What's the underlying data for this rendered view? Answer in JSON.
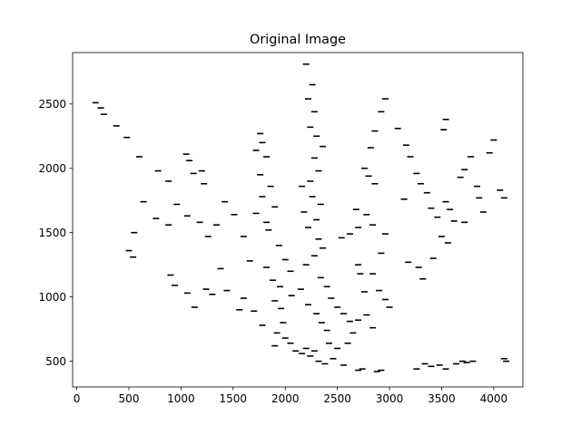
{
  "chart_data": {
    "type": "scatter",
    "title": "Original Image",
    "xlabel": "",
    "ylabel": "",
    "xlim": [
      -40,
      4280
    ],
    "ylim": [
      300,
      2900
    ],
    "x_ticks": [
      0,
      500,
      1000,
      1500,
      2000,
      2500,
      3000,
      3500,
      4000
    ],
    "y_ticks": [
      500,
      1000,
      1500,
      2000,
      2500
    ],
    "x_tick_labels": [
      "0",
      "500",
      "1000",
      "1500",
      "2000",
      "2500",
      "3000",
      "3500",
      "4000"
    ],
    "y_tick_labels": [
      "500",
      "1000",
      "1500",
      "2000",
      "2500"
    ],
    "grid": false,
    "marker": "short horizontal dash",
    "color": "#000000",
    "points": [
      [
        180,
        2510
      ],
      [
        230,
        2470
      ],
      [
        260,
        2420
      ],
      [
        380,
        2330
      ],
      [
        480,
        2240
      ],
      [
        600,
        2090
      ],
      [
        780,
        1980
      ],
      [
        880,
        1900
      ],
      [
        1050,
        2110
      ],
      [
        1080,
        2060
      ],
      [
        1120,
        1960
      ],
      [
        1220,
        1880
      ],
      [
        1200,
        1980
      ],
      [
        550,
        1500
      ],
      [
        640,
        1740
      ],
      [
        760,
        1610
      ],
      [
        880,
        1560
      ],
      [
        960,
        1720
      ],
      [
        1060,
        1630
      ],
      [
        1180,
        1580
      ],
      [
        1260,
        1470
      ],
      [
        1340,
        1560
      ],
      [
        1420,
        1740
      ],
      [
        1510,
        1640
      ],
      [
        1600,
        1470
      ],
      [
        1720,
        1650
      ],
      [
        1820,
        1580
      ],
      [
        1660,
        1280
      ],
      [
        500,
        1360
      ],
      [
        540,
        1310
      ],
      [
        900,
        1170
      ],
      [
        940,
        1090
      ],
      [
        1060,
        1030
      ],
      [
        1130,
        920
      ],
      [
        1240,
        1060
      ],
      [
        1300,
        1020
      ],
      [
        1380,
        1220
      ],
      [
        1440,
        1050
      ],
      [
        1560,
        900
      ],
      [
        1600,
        990
      ],
      [
        1700,
        890
      ],
      [
        1780,
        780
      ],
      [
        1820,
        1230
      ],
      [
        1880,
        1130
      ],
      [
        1900,
        970
      ],
      [
        1960,
        910
      ],
      [
        1980,
        800
      ],
      [
        1920,
        720
      ],
      [
        2000,
        680
      ],
      [
        1900,
        620
      ],
      [
        2050,
        640
      ],
      [
        1760,
        2270
      ],
      [
        1780,
        2200
      ],
      [
        1720,
        2140
      ],
      [
        1820,
        2090
      ],
      [
        1760,
        1950
      ],
      [
        1860,
        1860
      ],
      [
        1780,
        1780
      ],
      [
        1900,
        1700
      ],
      [
        1840,
        1520
      ],
      [
        1940,
        1400
      ],
      [
        2000,
        1290
      ],
      [
        2050,
        1200
      ],
      [
        1950,
        1080
      ],
      [
        2060,
        1010
      ],
      [
        2150,
        1060
      ],
      [
        2220,
        940
      ],
      [
        2300,
        870
      ],
      [
        2350,
        800
      ],
      [
        2400,
        740
      ],
      [
        2420,
        640
      ],
      [
        2500,
        600
      ],
      [
        2460,
        520
      ],
      [
        2320,
        500
      ],
      [
        2380,
        480
      ],
      [
        2560,
        470
      ],
      [
        2600,
        640
      ],
      [
        2650,
        720
      ],
      [
        2700,
        820
      ],
      [
        2780,
        860
      ],
      [
        2840,
        760
      ],
      [
        2900,
        1050
      ],
      [
        2960,
        980
      ],
      [
        3000,
        920
      ],
      [
        2760,
        1040
      ],
      [
        2840,
        1180
      ],
      [
        2920,
        1340
      ],
      [
        2960,
        1490
      ],
      [
        2840,
        1560
      ],
      [
        2780,
        1640
      ],
      [
        2680,
        1680
      ],
      [
        2700,
        1540
      ],
      [
        2620,
        1490
      ],
      [
        2540,
        1460
      ],
      [
        2200,
        2810
      ],
      [
        2260,
        2650
      ],
      [
        2220,
        2540
      ],
      [
        2280,
        2440
      ],
      [
        2240,
        2320
      ],
      [
        2300,
        2250
      ],
      [
        2360,
        2170
      ],
      [
        2280,
        2080
      ],
      [
        2320,
        1980
      ],
      [
        2240,
        1900
      ],
      [
        2160,
        1860
      ],
      [
        2260,
        1780
      ],
      [
        2340,
        1720
      ],
      [
        2180,
        1660
      ],
      [
        2300,
        1600
      ],
      [
        2220,
        1540
      ],
      [
        2320,
        1450
      ],
      [
        2360,
        1380
      ],
      [
        2280,
        1320
      ],
      [
        2200,
        1250
      ],
      [
        2340,
        1150
      ],
      [
        2400,
        1080
      ],
      [
        2440,
        990
      ],
      [
        2500,
        920
      ],
      [
        2560,
        870
      ],
      [
        2620,
        810
      ],
      [
        2760,
        2000
      ],
      [
        2800,
        1940
      ],
      [
        2860,
        1880
      ],
      [
        2820,
        2160
      ],
      [
        2860,
        2290
      ],
      [
        2920,
        2440
      ],
      [
        2960,
        2540
      ],
      [
        2700,
        1250
      ],
      [
        2720,
        1180
      ],
      [
        3080,
        2310
      ],
      [
        3160,
        2180
      ],
      [
        3200,
        2090
      ],
      [
        3260,
        1960
      ],
      [
        3300,
        1880
      ],
      [
        3140,
        1760
      ],
      [
        3360,
        1810
      ],
      [
        3400,
        1690
      ],
      [
        3460,
        1620
      ],
      [
        3540,
        1740
      ],
      [
        3580,
        1680
      ],
      [
        3620,
        1590
      ],
      [
        3520,
        2300
      ],
      [
        3540,
        2380
      ],
      [
        3680,
        1930
      ],
      [
        3720,
        1990
      ],
      [
        3780,
        2090
      ],
      [
        3840,
        1860
      ],
      [
        3860,
        1770
      ],
      [
        3900,
        1660
      ],
      [
        3960,
        2120
      ],
      [
        4000,
        2220
      ],
      [
        4060,
        1830
      ],
      [
        4100,
        1770
      ],
      [
        3500,
        1470
      ],
      [
        3560,
        1420
      ],
      [
        3720,
        1580
      ],
      [
        3280,
        1230
      ],
      [
        3320,
        1140
      ],
      [
        3420,
        1300
      ],
      [
        3180,
        1270
      ],
      [
        3260,
        440
      ],
      [
        3340,
        480
      ],
      [
        3400,
        460
      ],
      [
        3480,
        470
      ],
      [
        3540,
        440
      ],
      [
        3640,
        480
      ],
      [
        3740,
        490
      ],
      [
        3700,
        500
      ],
      [
        3800,
        500
      ],
      [
        4100,
        520
      ],
      [
        4120,
        500
      ],
      [
        2700,
        430
      ],
      [
        2740,
        440
      ],
      [
        2880,
        420
      ],
      [
        2920,
        430
      ],
      [
        2100,
        580
      ],
      [
        2160,
        560
      ],
      [
        2200,
        600
      ],
      [
        2240,
        540
      ],
      [
        2280,
        580
      ]
    ]
  }
}
